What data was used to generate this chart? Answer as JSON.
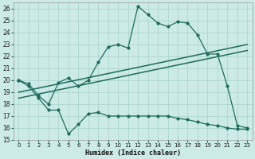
{
  "xlabel": "Humidex (Indice chaleur)",
  "bg_color": "#cceae6",
  "grid_color": "#add5d0",
  "line_color": "#1e6b5e",
  "xlim": [
    -0.5,
    23.5
  ],
  "ylim": [
    15,
    26.5
  ],
  "yticks": [
    15,
    16,
    17,
    18,
    19,
    20,
    21,
    22,
    23,
    24,
    25,
    26
  ],
  "xticks": [
    0,
    1,
    2,
    3,
    4,
    5,
    6,
    7,
    8,
    9,
    10,
    11,
    12,
    13,
    14,
    15,
    16,
    17,
    18,
    19,
    20,
    21,
    22,
    23
  ],
  "curve1_x": [
    0,
    1,
    2,
    3,
    4,
    5,
    6,
    7,
    8,
    9,
    10,
    11,
    12,
    13,
    14,
    15,
    16,
    17,
    18,
    19,
    20,
    21,
    22,
    23
  ],
  "curve1_y": [
    20.0,
    19.7,
    18.7,
    18.0,
    19.8,
    20.2,
    19.5,
    20.0,
    21.5,
    22.8,
    23.0,
    22.7,
    26.2,
    25.5,
    24.8,
    24.5,
    24.9,
    24.8,
    23.8,
    22.2,
    22.2,
    19.5,
    16.2,
    16.0
  ],
  "line1_x": [
    0,
    23
  ],
  "line1_y": [
    19.0,
    23.0
  ],
  "line2_x": [
    0,
    23
  ],
  "line2_y": [
    18.5,
    22.5
  ],
  "curve2_x": [
    0,
    1,
    2,
    3,
    4,
    5,
    6,
    7,
    8,
    9,
    10,
    11,
    12,
    13,
    14,
    15,
    16,
    17,
    18,
    19,
    20,
    21,
    22,
    23
  ],
  "curve2_y": [
    20.0,
    19.5,
    18.5,
    17.5,
    17.5,
    15.5,
    16.3,
    17.2,
    17.3,
    17.0,
    17.0,
    17.0,
    17.0,
    17.0,
    17.0,
    17.0,
    16.8,
    16.7,
    16.5,
    16.3,
    16.2,
    16.0,
    15.9,
    15.9
  ]
}
